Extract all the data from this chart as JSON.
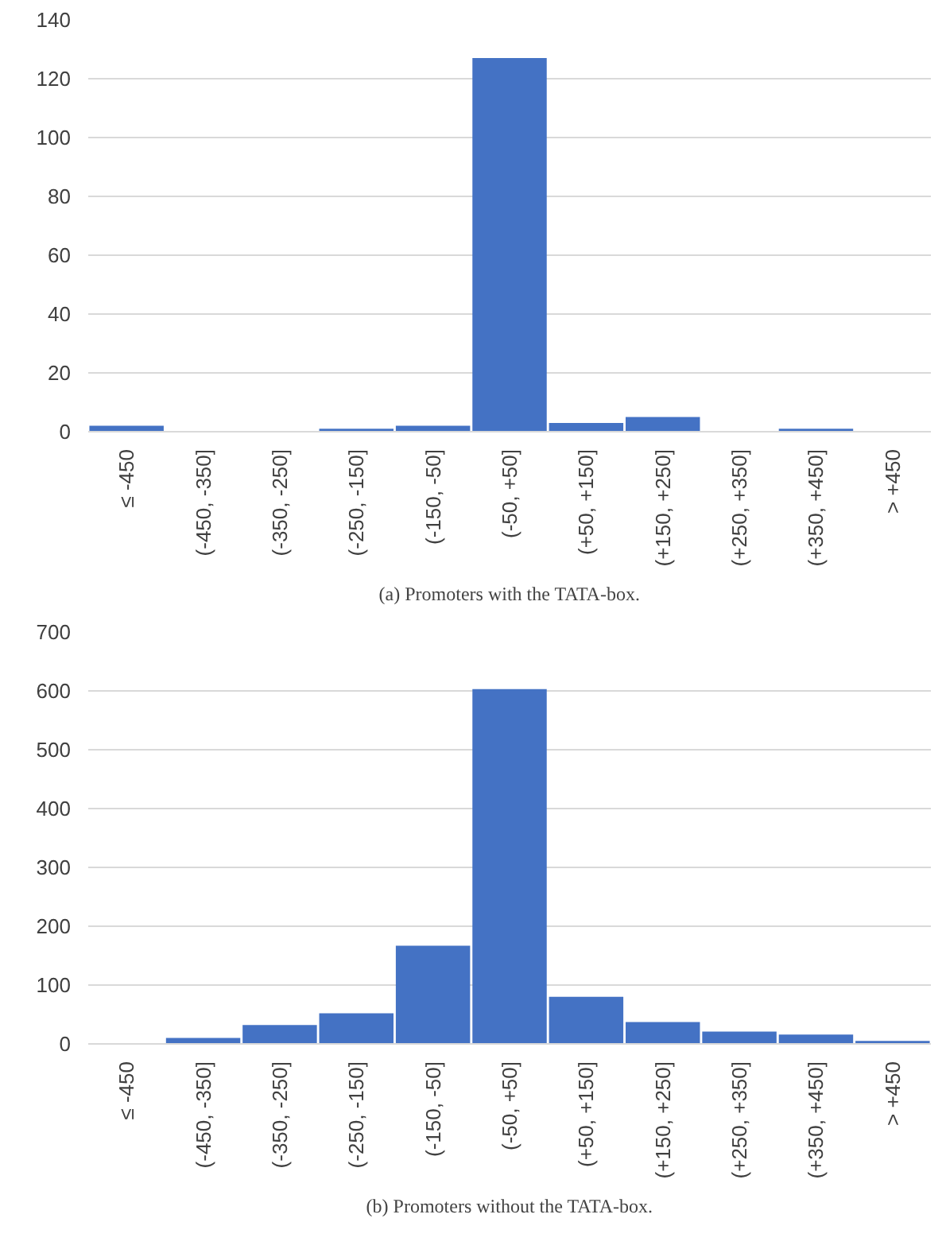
{
  "chart_data": [
    {
      "type": "bar",
      "categories": [
        "≤ -450",
        "(-450, -350]",
        "(-350, -250]",
        "(-250, -150]",
        "(-150, -50]",
        "(-50, +50]",
        "(+50, +150]",
        "(+150, +250]",
        "(+250, +350]",
        "(+350, +450]",
        "> +450"
      ],
      "values": [
        2,
        0,
        0,
        1,
        2,
        127,
        3,
        5,
        0,
        1,
        0
      ],
      "color": "#4472c4",
      "ylim": [
        0,
        140
      ],
      "yticks": [
        0,
        20,
        40,
        60,
        80,
        100,
        120,
        140
      ],
      "grid": "y",
      "annotations": [
        "(a) Promoters with the TATA-box."
      ]
    },
    {
      "type": "bar",
      "categories": [
        "≤ -450",
        "(-450, -350]",
        "(-350, -250]",
        "(-250, -150]",
        "(-150, -50]",
        "(-50, +50]",
        "(+50, +150]",
        "(+150, +250]",
        "(+250, +350]",
        "(+350, +450]",
        "> +450"
      ],
      "values": [
        0,
        10,
        32,
        52,
        167,
        603,
        80,
        37,
        21,
        16,
        5
      ],
      "color": "#4472c4",
      "ylim": [
        0,
        700
      ],
      "yticks": [
        0,
        100,
        200,
        300,
        400,
        500,
        600,
        700
      ],
      "grid": "y",
      "annotations": [
        "(b) Promoters without the TATA-box."
      ]
    }
  ]
}
